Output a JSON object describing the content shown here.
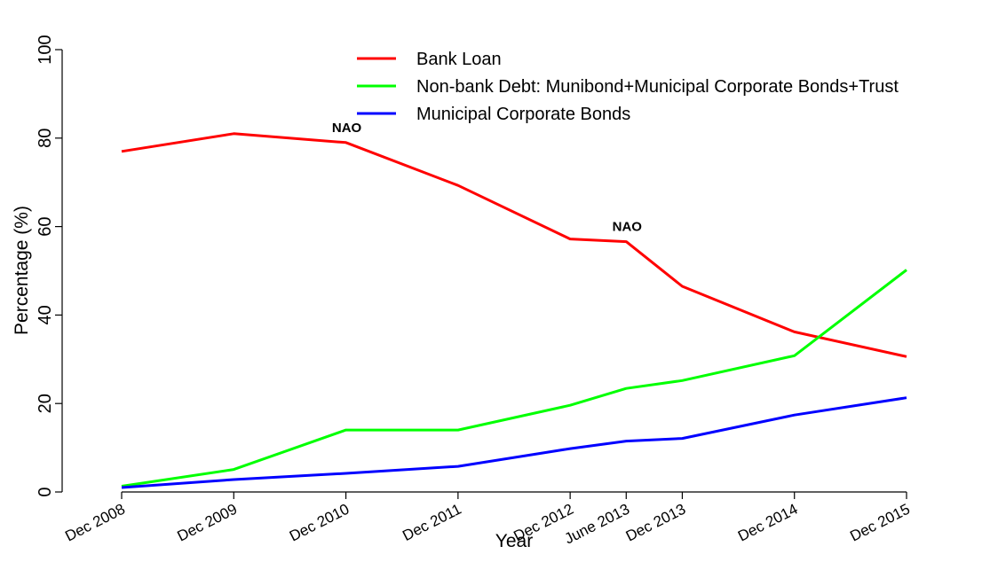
{
  "chart_data": {
    "type": "line",
    "title": "",
    "xlabel": "Year",
    "ylabel": "Percentage (%)",
    "ylim": [
      0,
      100
    ],
    "yticks": [
      0,
      20,
      40,
      60,
      80,
      100
    ],
    "categories": [
      "Dec 2008",
      "Dec 2009",
      "Dec 2010",
      "Dec 2011",
      "Dec 2012",
      "June 2013",
      "Dec 2013",
      "Dec 2014",
      "Dec 2015"
    ],
    "x": [
      2008.92,
      2009.92,
      2010.92,
      2011.92,
      2012.92,
      2013.42,
      2013.92,
      2014.92,
      2015.92
    ],
    "series": [
      {
        "name": "Bank Loan",
        "color": "#ff0000",
        "values": [
          77,
          81,
          79,
          69.3,
          57.2,
          56.6,
          46.5,
          36.2,
          30.6
        ]
      },
      {
        "name": "Non-bank Debt: Munibond+Municipal Corporate Bonds+Trust",
        "color": "#00ff00",
        "values": [
          1.3,
          5.1,
          14,
          14,
          19.6,
          23.4,
          25.2,
          30.8,
          50.2
        ]
      },
      {
        "name": "Municipal Corporate Bonds",
        "color": "#0000ff",
        "values": [
          1,
          2.8,
          4.2,
          5.8,
          9.8,
          11.5,
          12.1,
          17.4,
          21.3
        ]
      }
    ],
    "annotations": [
      {
        "text": "NAO",
        "x": 2010.92,
        "y": 79,
        "series": "Bank Loan"
      },
      {
        "text": "NAO",
        "x": 2013.42,
        "y": 56.6,
        "series": "Bank Loan"
      }
    ],
    "legend": "top-center",
    "grid": false
  }
}
